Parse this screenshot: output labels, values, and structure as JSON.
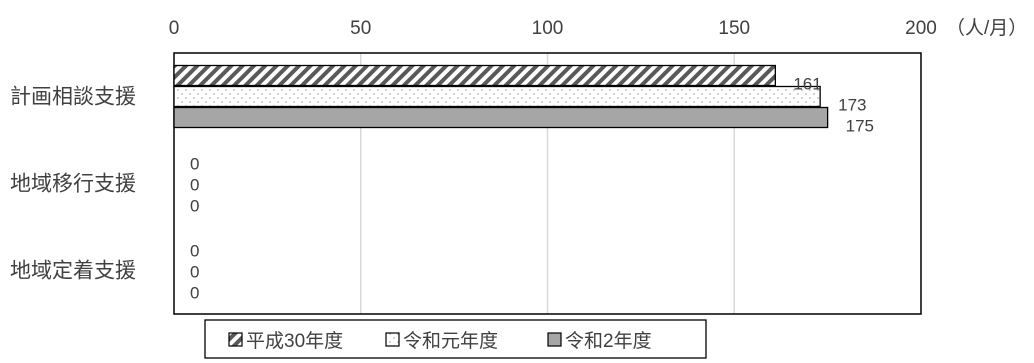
{
  "chart_data": {
    "type": "bar",
    "orientation": "horizontal",
    "categories": [
      "計画相談支援",
      "地域移行支援",
      "地域定着支援"
    ],
    "series": [
      {
        "name": "平成30年度",
        "values": [
          161,
          0,
          0
        ],
        "pattern": "diagonal-stripe",
        "color": "#595959"
      },
      {
        "name": "令和元年度",
        "values": [
          173,
          0,
          0
        ],
        "pattern": "dots",
        "color": "#bfbfbf"
      },
      {
        "name": "令和2年度",
        "values": [
          175,
          0,
          0
        ],
        "pattern": "solid",
        "color": "#a6a6a6"
      }
    ],
    "xlim": [
      0,
      200
    ],
    "xticks": [
      0,
      50,
      100,
      150,
      200
    ],
    "unit_label": "（人/月）",
    "x_axis_position": "top",
    "grid": true,
    "legend_position": "bottom"
  }
}
